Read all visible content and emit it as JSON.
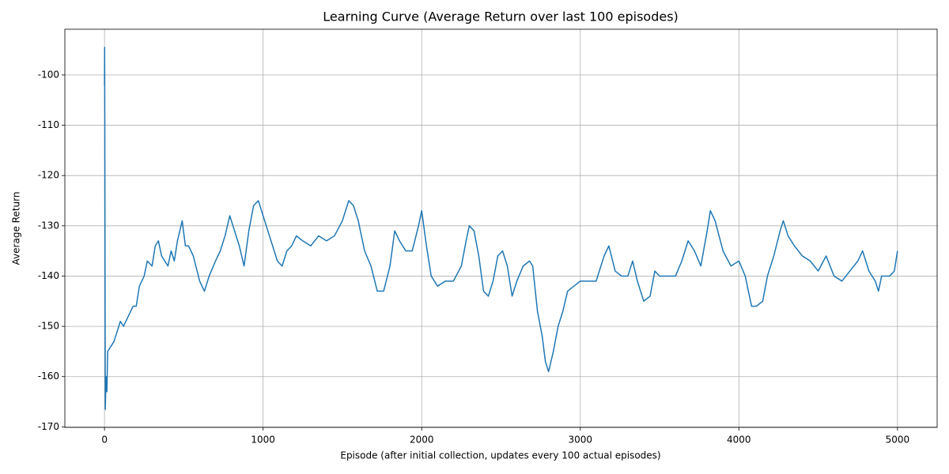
{
  "chart_data": {
    "type": "line",
    "title": "Learning Curve (Average Return over last 100 episodes)",
    "x_label": "Episode (after initial collection, updates every 100 actual episodes)",
    "y_label": "Average Return",
    "xlim": [
      -250,
      5250
    ],
    "xticks": [
      0,
      1000,
      2000,
      3000,
      4000,
      5000
    ],
    "ylim": [
      -170.1,
      -90.9
    ],
    "yticks": [
      -100,
      -110,
      -120,
      -130,
      -140,
      -150,
      -160,
      -170
    ],
    "grid": true,
    "x": [
      0,
      1,
      3,
      5,
      10,
      15,
      20,
      40,
      60,
      80,
      100,
      120,
      150,
      180,
      200,
      220,
      250,
      270,
      300,
      320,
      340,
      360,
      380,
      400,
      420,
      440,
      460,
      490,
      510,
      530,
      560,
      600,
      630,
      660,
      700,
      730,
      760,
      790,
      820,
      850,
      880,
      910,
      940,
      970,
      1000,
      1030,
      1060,
      1090,
      1120,
      1150,
      1180,
      1210,
      1250,
      1300,
      1350,
      1400,
      1450,
      1500,
      1540,
      1570,
      1600,
      1640,
      1680,
      1720,
      1760,
      1800,
      1830,
      1860,
      1900,
      1940,
      1980,
      2000,
      2030,
      2060,
      2100,
      2150,
      2200,
      2250,
      2280,
      2300,
      2330,
      2360,
      2390,
      2420,
      2450,
      2480,
      2510,
      2540,
      2570,
      2600,
      2640,
      2680,
      2700,
      2730,
      2760,
      2780,
      2800,
      2830,
      2860,
      2890,
      2920,
      2960,
      3000,
      3050,
      3100,
      3150,
      3180,
      3220,
      3260,
      3300,
      3330,
      3360,
      3400,
      3440,
      3470,
      3500,
      3550,
      3600,
      3640,
      3680,
      3720,
      3760,
      3800,
      3820,
      3850,
      3900,
      3950,
      4000,
      4040,
      4080,
      4110,
      4150,
      4180,
      4220,
      4260,
      4280,
      4310,
      4350,
      4400,
      4450,
      4500,
      4550,
      4600,
      4650,
      4700,
      4750,
      4780,
      4820,
      4860,
      4880,
      4900,
      4950,
      4980,
      5000
    ],
    "series": [
      {
        "name": "Average Return",
        "color": "#1f77b4",
        "values": [
          -102,
          -94.5,
          -130,
          -166.5,
          -160,
          -163,
          -155,
          -154,
          -153,
          -151,
          -149,
          -150,
          -148,
          -146,
          -146,
          -142,
          -140,
          -137,
          -138,
          -134,
          -133,
          -136,
          -137,
          -138,
          -135,
          -137,
          -133,
          -129,
          -134,
          -134,
          -136,
          -141,
          -143,
          -140,
          -137,
          -135,
          -132,
          -128,
          -131,
          -134,
          -138,
          -131,
          -126,
          -125,
          -128,
          -131,
          -134,
          -137,
          -138,
          -135,
          -134,
          -132,
          -133,
          -134,
          -132,
          -133,
          -132,
          -129,
          -125,
          -126,
          -129,
          -135,
          -138,
          -143,
          -143,
          -138,
          -131,
          -133,
          -135,
          -135,
          -130,
          -127,
          -134,
          -140,
          -142,
          -141,
          -141,
          -138,
          -133,
          -130,
          -131,
          -136,
          -143,
          -144,
          -141,
          -136,
          -135,
          -138,
          -144,
          -141,
          -138,
          -137,
          -138,
          -147,
          -152,
          -157,
          -159,
          -155,
          -150,
          -147,
          -143,
          -142,
          -141,
          -141,
          -141,
          -136,
          -134,
          -139,
          -140,
          -140,
          -137,
          -141,
          -145,
          -144,
          -139,
          -140,
          -140,
          -140,
          -137,
          -133,
          -135,
          -138,
          -131,
          -127,
          -129,
          -135,
          -138,
          -137,
          -140,
          -146,
          -146,
          -145,
          -140,
          -136,
          -131,
          -129,
          -132,
          -134,
          -136,
          -137,
          -139,
          -136,
          -140,
          -141,
          -139,
          -137,
          -135,
          -139,
          -141,
          -143,
          -140,
          -140,
          -139,
          -135
        ]
      }
    ]
  }
}
